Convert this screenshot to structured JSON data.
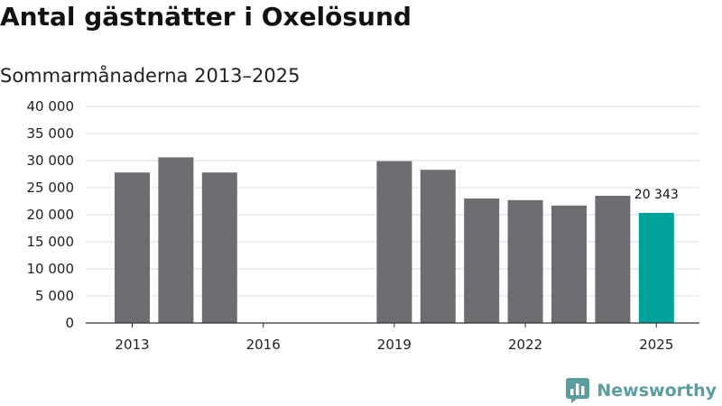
{
  "title": "Antal gästnätter i Oxelösund",
  "subtitle": "Sommarmånaderna 2013–2025",
  "brand": {
    "name": "Newsworthy",
    "icon": "bar-chart-speech-bubble-icon",
    "color": "#5b9ea0"
  },
  "colors": {
    "bar": "#6d6c70",
    "highlight": "#00a39a",
    "grid": "#dedede",
    "axis": "#333333"
  },
  "chart_data": {
    "type": "bar",
    "title": "Antal gästnätter i Oxelösund",
    "subtitle": "Sommarmånaderna 2013–2025",
    "xlabel": "",
    "ylabel": "",
    "x": [
      2013,
      2014,
      2015,
      2016,
      2017,
      2018,
      2019,
      2020,
      2021,
      2022,
      2023,
      2024,
      2025
    ],
    "values": [
      27800,
      30600,
      27800,
      null,
      null,
      null,
      29900,
      28300,
      23000,
      22700,
      21700,
      23500,
      20343
    ],
    "ylim": [
      0,
      40000
    ],
    "yticks": [
      0,
      5000,
      10000,
      15000,
      20000,
      25000,
      30000,
      35000,
      40000
    ],
    "ytick_labels": [
      "0",
      "5 000",
      "10 000",
      "15 000",
      "20 000",
      "25 000",
      "30 000",
      "35 000",
      "40 000"
    ],
    "xticks": [
      "2013",
      "2016",
      "2019",
      "2022",
      "2025"
    ],
    "highlight": {
      "x": 2025,
      "label": "20 343"
    },
    "grid": true,
    "legend": "none"
  }
}
